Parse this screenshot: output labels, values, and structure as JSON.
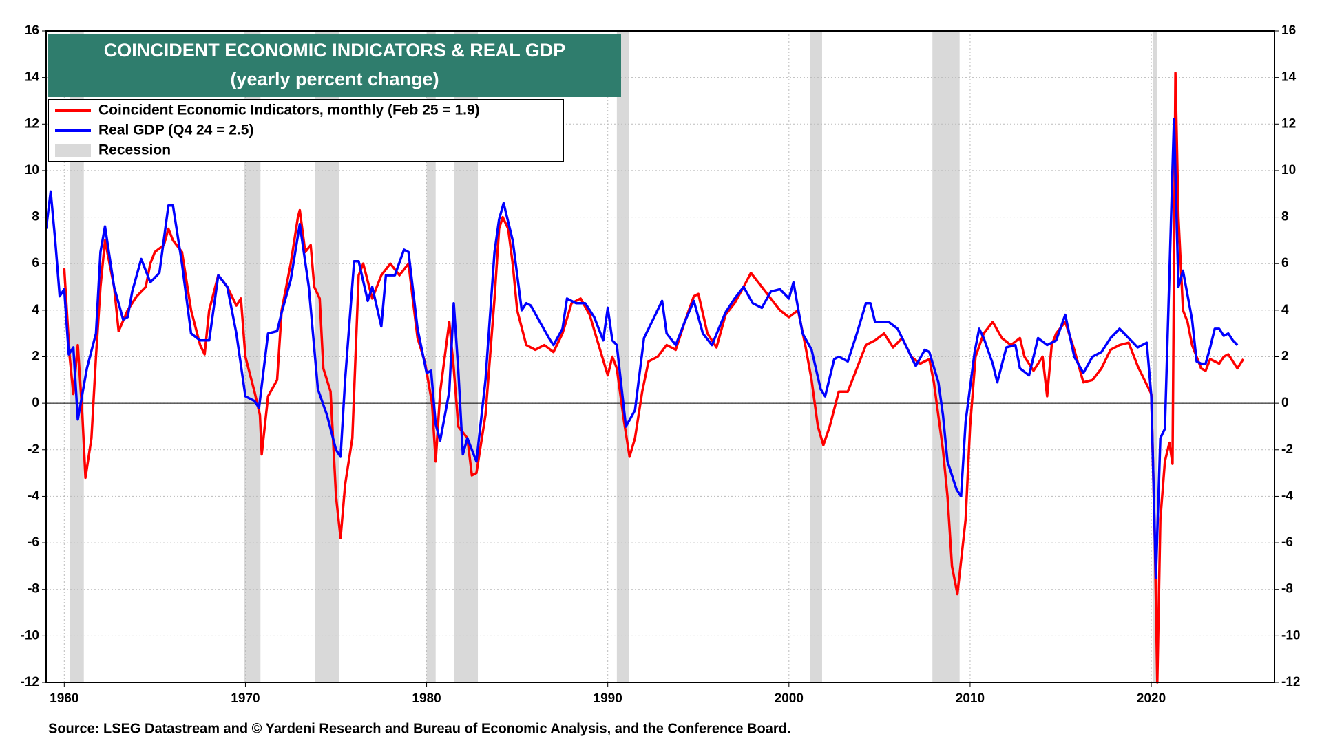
{
  "chart_data": {
    "type": "line",
    "title": "COINCIDENT ECONOMIC INDICATORS & REAL GDP",
    "subtitle": "(yearly percent change)",
    "source": "Source: LSEG Datastream and © Yardeni Research and Bureau of Economic Analysis, and the Conference Board.",
    "xlim": [
      1959,
      2026.8
    ],
    "xticks": [
      1960,
      1970,
      1980,
      1990,
      2000,
      2010,
      2020
    ],
    "ylim": [
      -12,
      16
    ],
    "yticks": [
      -12,
      -10,
      -8,
      -6,
      -4,
      -2,
      0,
      2,
      4,
      6,
      8,
      10,
      12,
      14,
      16
    ],
    "grid": true,
    "legend": "upper left",
    "recession_name": "Recession",
    "recession_color": "#d9d9d9",
    "recessions": [
      [
        1960.33,
        1961.08
      ],
      [
        1969.92,
        1970.83
      ],
      [
        1973.83,
        1975.17
      ],
      [
        1980.0,
        1980.5
      ],
      [
        1981.5,
        1982.83
      ],
      [
        1990.5,
        1991.17
      ],
      [
        2001.17,
        2001.83
      ],
      [
        2007.92,
        2009.42
      ],
      [
        2020.08,
        2020.33
      ]
    ],
    "series": [
      {
        "name": "Coincident Economic Indicators, monthly (Feb 25 = 1.9)",
        "color": "#ff0000",
        "x": [
          1960.0,
          1960.3,
          1960.5,
          1960.75,
          1961.0,
          1961.17,
          1961.5,
          1961.75,
          1962.0,
          1962.25,
          1962.75,
          1963.0,
          1963.5,
          1964.0,
          1964.5,
          1964.75,
          1965.0,
          1965.5,
          1965.75,
          1966.0,
          1966.5,
          1967.0,
          1967.5,
          1967.75,
          1968.0,
          1968.5,
          1969.0,
          1969.5,
          1969.75,
          1970.0,
          1970.5,
          1970.8,
          1970.9,
          1971.25,
          1971.75,
          1972.0,
          1972.5,
          1972.9,
          1973.0,
          1973.3,
          1973.6,
          1973.8,
          1974.1,
          1974.3,
          1974.7,
          1975.0,
          1975.25,
          1975.5,
          1975.9,
          1976.25,
          1976.5,
          1977.0,
          1977.5,
          1978.0,
          1978.5,
          1979.0,
          1979.5,
          1979.9,
          1980.3,
          1980.5,
          1980.75,
          1981.25,
          1981.5,
          1981.75,
          1982.25,
          1982.5,
          1982.75,
          1983.25,
          1983.75,
          1984.0,
          1984.2,
          1984.5,
          1984.75,
          1985.0,
          1985.5,
          1986.0,
          1986.5,
          1987.0,
          1987.5,
          1988.0,
          1988.5,
          1989.0,
          1989.5,
          1990.0,
          1990.25,
          1990.5,
          1990.9,
          1991.2,
          1991.5,
          1991.9,
          1992.25,
          1992.75,
          1993.25,
          1993.75,
          1994.25,
          1994.75,
          1995.0,
          1995.5,
          1996.0,
          1996.5,
          1997.0,
          1997.5,
          1997.9,
          1998.5,
          1999.0,
          1999.5,
          2000.0,
          2000.5,
          2000.9,
          2001.25,
          2001.6,
          2001.9,
          2002.25,
          2002.75,
          2003.25,
          2003.75,
          2004.25,
          2004.75,
          2005.25,
          2005.75,
          2006.25,
          2006.75,
          2007.25,
          2007.75,
          2008.0,
          2008.5,
          2008.75,
          2009.0,
          2009.3,
          2009.75,
          2010.0,
          2010.3,
          2010.75,
          2011.25,
          2011.75,
          2012.25,
          2012.75,
          2013.0,
          2013.5,
          2014.0,
          2014.25,
          2014.5,
          2014.75,
          2015.25,
          2015.75,
          2016.25,
          2016.75,
          2017.25,
          2017.75,
          2018.25,
          2018.75,
          2019.25,
          2019.75,
          2020.0,
          2020.2,
          2020.33,
          2020.5,
          2020.75,
          2021.0,
          2021.17,
          2021.33,
          2021.5,
          2021.75,
          2022.0,
          2022.25,
          2022.5,
          2022.75,
          2023.0,
          2023.25,
          2023.5,
          2023.75,
          2024.0,
          2024.25,
          2024.5,
          2024.75,
          2025.08
        ],
        "values": [
          5.8,
          2.0,
          0.4,
          2.5,
          -0.5,
          -3.2,
          -1.5,
          2.0,
          5.0,
          7.0,
          5.0,
          3.1,
          4.0,
          4.6,
          5.0,
          6.0,
          6.5,
          6.8,
          7.5,
          7.0,
          6.5,
          4.0,
          2.5,
          2.1,
          4.0,
          5.5,
          5.0,
          4.2,
          4.5,
          2.0,
          0.5,
          -0.5,
          -2.2,
          0.3,
          1.0,
          4.0,
          6.0,
          8.0,
          8.3,
          6.5,
          6.8,
          5.0,
          4.5,
          1.5,
          0.5,
          -4.0,
          -5.8,
          -3.5,
          -1.5,
          5.5,
          6.0,
          4.5,
          5.5,
          6.0,
          5.5,
          6.0,
          2.8,
          1.8,
          0.0,
          -2.5,
          0.5,
          3.5,
          1.5,
          -1.0,
          -1.5,
          -3.1,
          -3.0,
          -0.5,
          4.5,
          7.5,
          8.0,
          7.5,
          6.0,
          4.0,
          2.5,
          2.3,
          2.5,
          2.2,
          3.0,
          4.3,
          4.5,
          3.8,
          2.5,
          1.2,
          2.0,
          1.5,
          -0.8,
          -2.3,
          -1.5,
          0.5,
          1.8,
          2.0,
          2.5,
          2.3,
          3.5,
          4.6,
          4.7,
          3.0,
          2.4,
          3.8,
          4.3,
          5.0,
          5.6,
          5.0,
          4.5,
          4.0,
          3.7,
          4.0,
          2.5,
          1.0,
          -1.0,
          -1.8,
          -1.0,
          0.5,
          0.5,
          1.5,
          2.5,
          2.7,
          3.0,
          2.4,
          2.8,
          2.0,
          1.7,
          1.9,
          0.9,
          -2.0,
          -4.0,
          -7.0,
          -8.2,
          -5.0,
          -1.0,
          2.0,
          3.0,
          3.5,
          2.8,
          2.5,
          2.8,
          2.0,
          1.4,
          2.0,
          0.3,
          2.5,
          3.0,
          3.5,
          2.3,
          0.9,
          1.0,
          1.5,
          2.3,
          2.5,
          2.6,
          1.6,
          0.8,
          0.4,
          -6.0,
          -12.0,
          -5.0,
          -2.5,
          -1.7,
          -2.6,
          14.2,
          8.0,
          4.0,
          3.5,
          2.5,
          2.0,
          1.5,
          1.4,
          1.9,
          1.8,
          1.7,
          2.0,
          2.1,
          1.8,
          1.5,
          1.9
        ]
      },
      {
        "name": "Real GDP (Q4 24 = 2.5)",
        "color": "#0000ff",
        "x": [
          1959.0,
          1959.25,
          1959.5,
          1959.75,
          1960.0,
          1960.25,
          1960.5,
          1960.75,
          1961.25,
          1961.75,
          1962.0,
          1962.25,
          1962.75,
          1963.25,
          1963.5,
          1963.75,
          1964.25,
          1964.75,
          1965.25,
          1965.75,
          1966.0,
          1966.5,
          1967.0,
          1967.5,
          1968.0,
          1968.5,
          1969.0,
          1969.5,
          1970.0,
          1970.5,
          1970.75,
          1971.25,
          1971.75,
          1972.0,
          1972.5,
          1973.0,
          1973.5,
          1974.0,
          1974.5,
          1975.0,
          1975.25,
          1975.5,
          1976.0,
          1976.25,
          1976.75,
          1977.0,
          1977.5,
          1977.75,
          1978.25,
          1978.75,
          1979.0,
          1979.5,
          1980.0,
          1980.25,
          1980.5,
          1980.75,
          1981.25,
          1981.5,
          1981.75,
          1982.0,
          1982.25,
          1982.75,
          1983.25,
          1983.75,
          1984.0,
          1984.25,
          1984.75,
          1985.25,
          1985.5,
          1985.75,
          1986.25,
          1986.75,
          1987.0,
          1987.5,
          1987.75,
          1988.25,
          1988.75,
          1989.25,
          1989.75,
          1990.0,
          1990.25,
          1990.5,
          1991.0,
          1991.5,
          1992.0,
          1992.5,
          1993.0,
          1993.25,
          1993.75,
          1994.25,
          1994.75,
          1995.25,
          1995.75,
          1996.5,
          1997.0,
          1997.5,
          1998.0,
          1998.5,
          1999.0,
          1999.5,
          2000.0,
          2000.25,
          2000.75,
          2001.25,
          2001.75,
          2002.0,
          2002.5,
          2002.75,
          2003.25,
          2003.75,
          2004.25,
          2004.5,
          2004.75,
          2005.5,
          2006.0,
          2006.5,
          2007.0,
          2007.5,
          2007.75,
          2008.25,
          2008.5,
          2008.75,
          2009.25,
          2009.5,
          2009.75,
          2010.25,
          2010.5,
          2010.75,
          2011.25,
          2011.5,
          2012.0,
          2012.5,
          2012.75,
          2013.25,
          2013.75,
          2014.25,
          2014.75,
          2015.25,
          2015.75,
          2016.25,
          2016.75,
          2017.25,
          2017.75,
          2018.25,
          2018.75,
          2019.25,
          2019.75,
          2020.0,
          2020.25,
          2020.5,
          2020.75,
          2021.25,
          2021.5,
          2021.75,
          2022.25,
          2022.5,
          2022.75,
          2023.0,
          2023.25,
          2023.5,
          2023.75,
          2024.0,
          2024.25,
          2024.5,
          2024.75
        ],
        "values": [
          7.5,
          9.1,
          7.0,
          4.6,
          4.9,
          2.1,
          2.4,
          -0.7,
          1.5,
          3.0,
          6.5,
          7.6,
          5.0,
          3.6,
          3.7,
          4.8,
          6.2,
          5.2,
          5.6,
          8.5,
          8.5,
          6.0,
          3.0,
          2.7,
          2.7,
          5.5,
          5.0,
          3.0,
          0.3,
          0.1,
          -0.2,
          3.0,
          3.1,
          3.9,
          5.3,
          7.7,
          5.0,
          0.6,
          -0.5,
          -2.0,
          -2.3,
          1.0,
          6.1,
          6.1,
          4.4,
          5.0,
          3.3,
          5.5,
          5.5,
          6.6,
          6.5,
          3.2,
          1.3,
          1.4,
          -0.9,
          -1.6,
          0.5,
          4.3,
          1.4,
          -2.2,
          -1.5,
          -2.5,
          1.0,
          6.5,
          7.9,
          8.6,
          7.0,
          4.0,
          4.3,
          4.2,
          3.5,
          2.8,
          2.5,
          3.2,
          4.5,
          4.3,
          4.3,
          3.7,
          2.7,
          4.1,
          2.7,
          2.5,
          -1.0,
          -0.3,
          2.8,
          3.6,
          4.4,
          3.0,
          2.5,
          3.5,
          4.4,
          3.0,
          2.5,
          3.9,
          4.5,
          5.0,
          4.3,
          4.1,
          4.8,
          4.9,
          4.5,
          5.2,
          3.0,
          2.3,
          0.6,
          0.3,
          1.9,
          2.0,
          1.8,
          3.0,
          4.3,
          4.3,
          3.5,
          3.5,
          3.2,
          2.4,
          1.6,
          2.3,
          2.2,
          0.9,
          -0.5,
          -2.5,
          -3.7,
          -4.0,
          -0.8,
          2.2,
          3.2,
          2.8,
          1.7,
          0.9,
          2.4,
          2.5,
          1.5,
          1.2,
          2.8,
          2.5,
          2.7,
          3.8,
          2.0,
          1.3,
          2.0,
          2.2,
          2.8,
          3.2,
          2.8,
          2.4,
          2.6,
          0.3,
          -7.5,
          -1.5,
          -1.1,
          12.2,
          5.0,
          5.7,
          3.6,
          1.8,
          1.7,
          1.7,
          2.4,
          3.2,
          3.2,
          2.9,
          3.0,
          2.7,
          2.5
        ]
      }
    ]
  }
}
